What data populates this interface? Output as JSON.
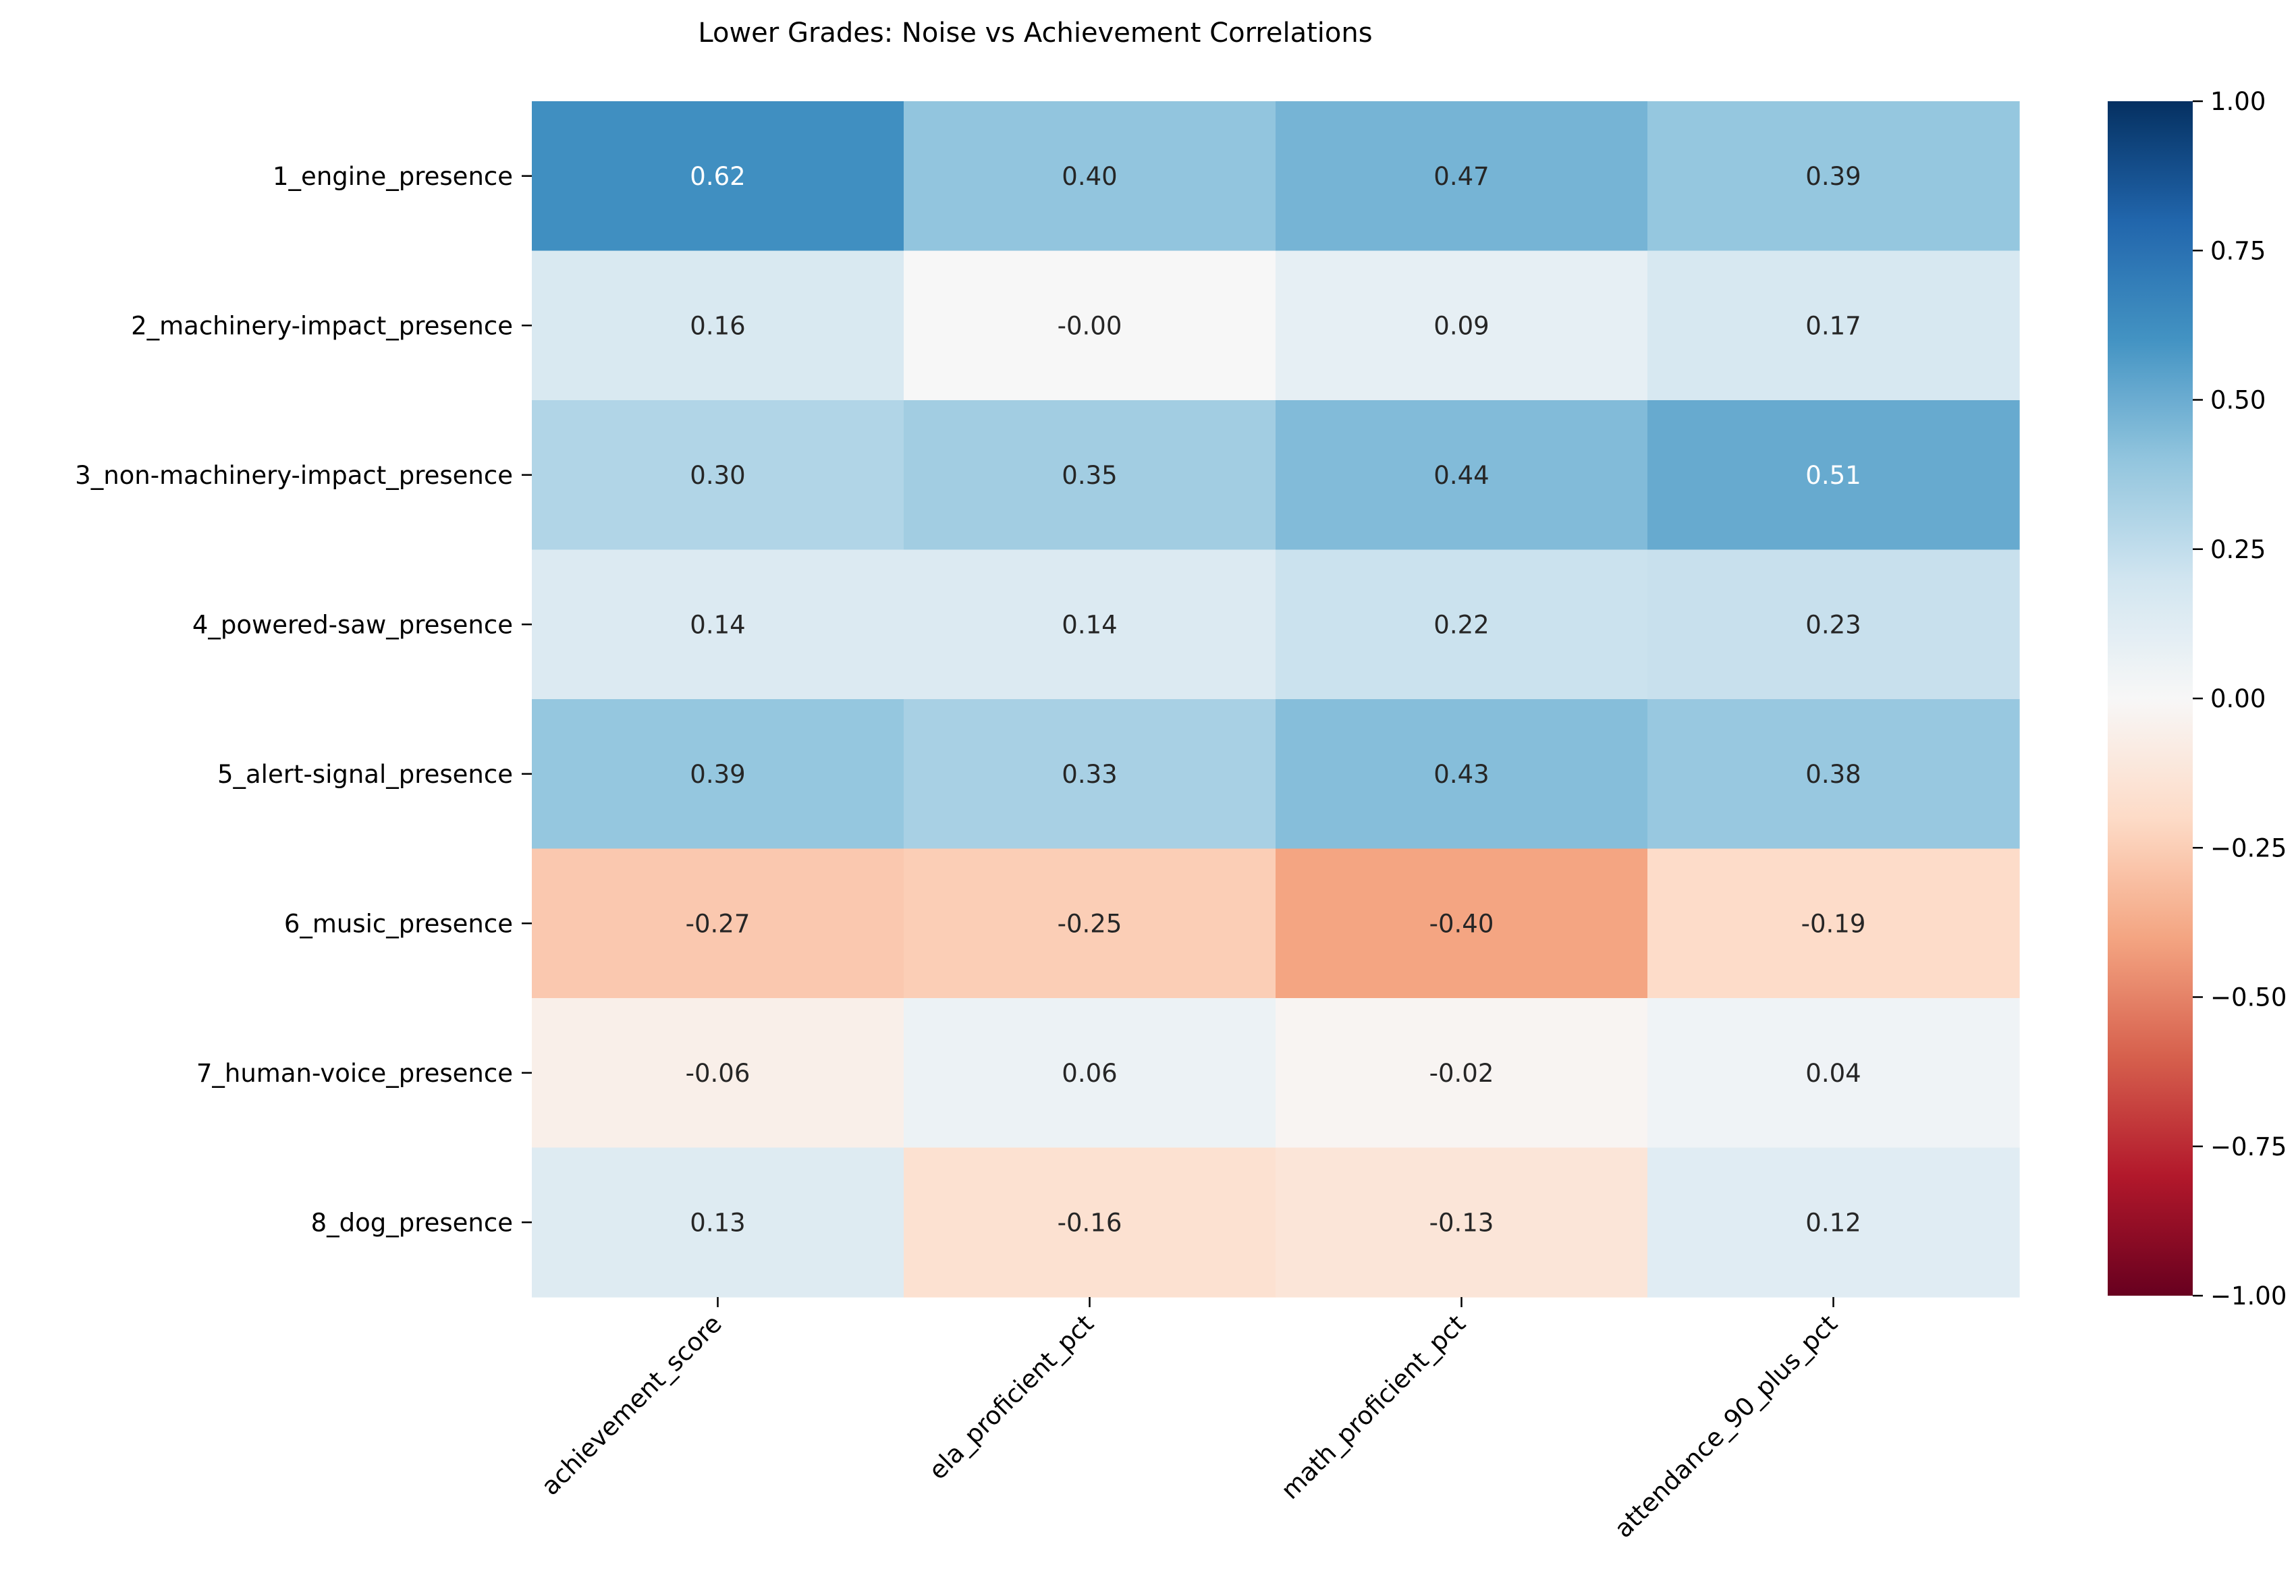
{
  "chart_data": {
    "type": "heatmap",
    "title": "Lower Grades: Noise vs Achievement Correlations",
    "xlabel": "",
    "ylabel": "",
    "rows": [
      "1_engine_presence",
      "2_machinery-impact_presence",
      "3_non-machinery-impact_presence",
      "4_powered-saw_presence",
      "5_alert-signal_presence",
      "6_music_presence",
      "7_human-voice_presence",
      "8_dog_presence"
    ],
    "columns": [
      "achievement_score",
      "ela_proficient_pct",
      "math_proficient_pct",
      "attendance_90_plus_pct"
    ],
    "values": [
      [
        0.62,
        0.4,
        0.47,
        0.39
      ],
      [
        0.16,
        -0.0,
        0.09,
        0.17
      ],
      [
        0.3,
        0.35,
        0.44,
        0.51
      ],
      [
        0.14,
        0.14,
        0.22,
        0.23
      ],
      [
        0.39,
        0.33,
        0.43,
        0.38
      ],
      [
        -0.27,
        -0.25,
        -0.4,
        -0.19
      ],
      [
        -0.06,
        0.06,
        -0.02,
        0.04
      ],
      [
        0.13,
        -0.16,
        -0.13,
        0.12
      ]
    ],
    "value_labels": [
      [
        "0.62",
        "0.40",
        "0.47",
        "0.39"
      ],
      [
        "0.16",
        "-0.00",
        "0.09",
        "0.17"
      ],
      [
        "0.30",
        "0.35",
        "0.44",
        "0.51"
      ],
      [
        "0.14",
        "0.14",
        "0.22",
        "0.23"
      ],
      [
        "0.39",
        "0.33",
        "0.43",
        "0.38"
      ],
      [
        "-0.27",
        "-0.25",
        "-0.40",
        "-0.19"
      ],
      [
        "-0.06",
        "0.06",
        "-0.02",
        "0.04"
      ],
      [
        "0.13",
        "-0.16",
        "-0.13",
        "0.12"
      ]
    ],
    "colorbar": {
      "colormap": "RdBu",
      "vmin": -1.0,
      "vmax": 1.0,
      "tick_values": [
        1.0,
        0.75,
        0.5,
        0.25,
        0.0,
        -0.25,
        -0.5,
        -0.75,
        -1.0
      ],
      "tick_labels": [
        "1.00",
        "0.75",
        "0.50",
        "0.25",
        "0.00",
        "−0.25",
        "−0.50",
        "−0.75",
        "−1.00"
      ]
    },
    "legend": "none",
    "grid": false
  }
}
